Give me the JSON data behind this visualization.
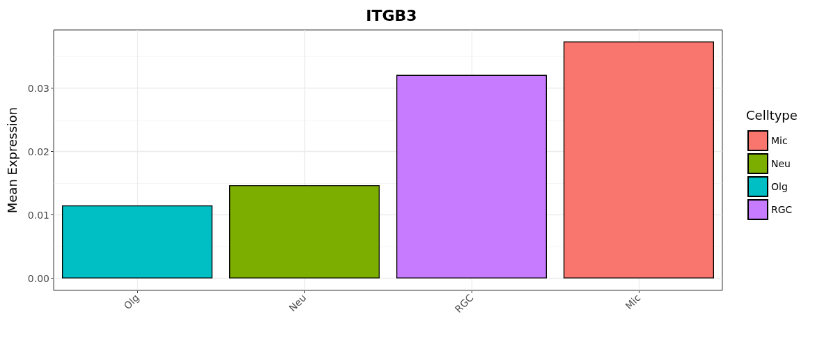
{
  "chart_data": {
    "type": "bar",
    "title": "ITGB3",
    "ylabel": "Mean Expression",
    "legend_title": "Celltype",
    "categories": [
      "Olg",
      "Neu",
      "RGC",
      "Mic"
    ],
    "series": [
      {
        "name": "Mic",
        "color": "#f8766d",
        "values": [
          null,
          null,
          null,
          0.0374
        ]
      },
      {
        "name": "Neu",
        "color": "#7cae00",
        "values": [
          null,
          0.0147,
          null,
          null
        ]
      },
      {
        "name": "Olg",
        "color": "#00bfc4",
        "values": [
          0.0115,
          null,
          null,
          null
        ]
      },
      {
        "name": "RGC",
        "color": "#c77cff",
        "values": [
          null,
          null,
          0.0321,
          null
        ]
      }
    ],
    "ylim": [
      -0.0019,
      0.0392
    ],
    "yticks": [
      {
        "value": 0,
        "label": "0.00"
      },
      0.01,
      0.02,
      0.03
    ],
    "grid": true,
    "legend": "right"
  }
}
